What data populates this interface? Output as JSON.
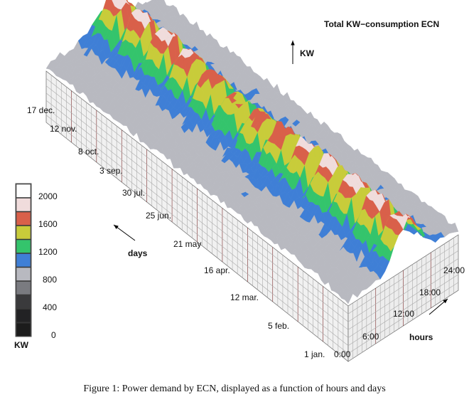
{
  "figure": {
    "title": "Total KW−consumption ECN",
    "z_axis_label": "KW",
    "days_label": "days",
    "hours_label": "hours",
    "day_ticks": [
      "1 jan.",
      "5 feb.",
      "12 mar.",
      "16 apr.",
      "21 may",
      "25 jun.",
      "30 jul.",
      "3 sep.",
      "8 oct.",
      "12 nov.",
      "17 dec."
    ],
    "hour_ticks": [
      "0:00",
      "6:00",
      "12:00",
      "18:00",
      "24:00"
    ],
    "colorbar": {
      "unit": "KW",
      "ticks": [
        "2000",
        "1600",
        "1200",
        "800",
        "400",
        "0"
      ],
      "colors": [
        "#fdfdfd",
        "#f0dcdc",
        "#d9604a",
        "#c8cc3a",
        "#34c46c",
        "#3f7fd6",
        "#b8b9c0",
        "#7a7b80",
        "#3a3a3c",
        "#222224",
        "#1c1c1c"
      ]
    }
  },
  "caption": "Figure 1: Power demand by ECN, displayed as a function of hours and days"
}
